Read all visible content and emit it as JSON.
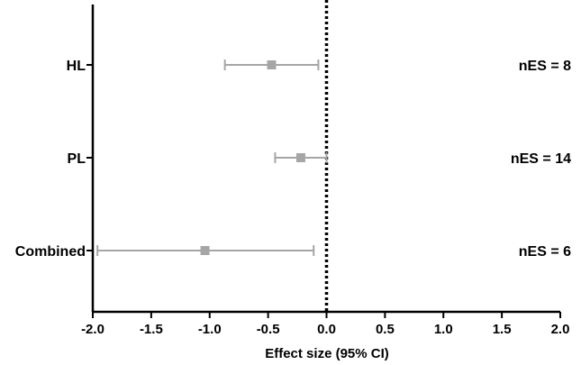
{
  "chart_data": {
    "type": "forest",
    "xlabel": "Effect size (95% CI)",
    "xlim": [
      -2.0,
      2.0
    ],
    "xticks": [
      "-2.0",
      "-1.5",
      "-1.0",
      "-0.5",
      "0.0",
      "0.5",
      "1.0",
      "1.5",
      "2.0"
    ],
    "reference_line": 0.0,
    "reference_line_style": "dotted",
    "categories": [
      "HL",
      "PL",
      "Combined"
    ],
    "estimates": [
      {
        "label": "HL",
        "value": -0.47,
        "ci_low": -0.87,
        "ci_high": -0.07,
        "annotation": "nES = 8"
      },
      {
        "label": "PL",
        "value": -0.22,
        "ci_low": -0.44,
        "ci_high": 0.0,
        "annotation": "nES = 14"
      },
      {
        "label": "Combined",
        "value": -1.04,
        "ci_low": -1.96,
        "ci_high": -0.11,
        "annotation": "nES = 6"
      }
    ],
    "marker_color": "#a6a6a6",
    "axis_color": "#000000",
    "grid": false
  }
}
